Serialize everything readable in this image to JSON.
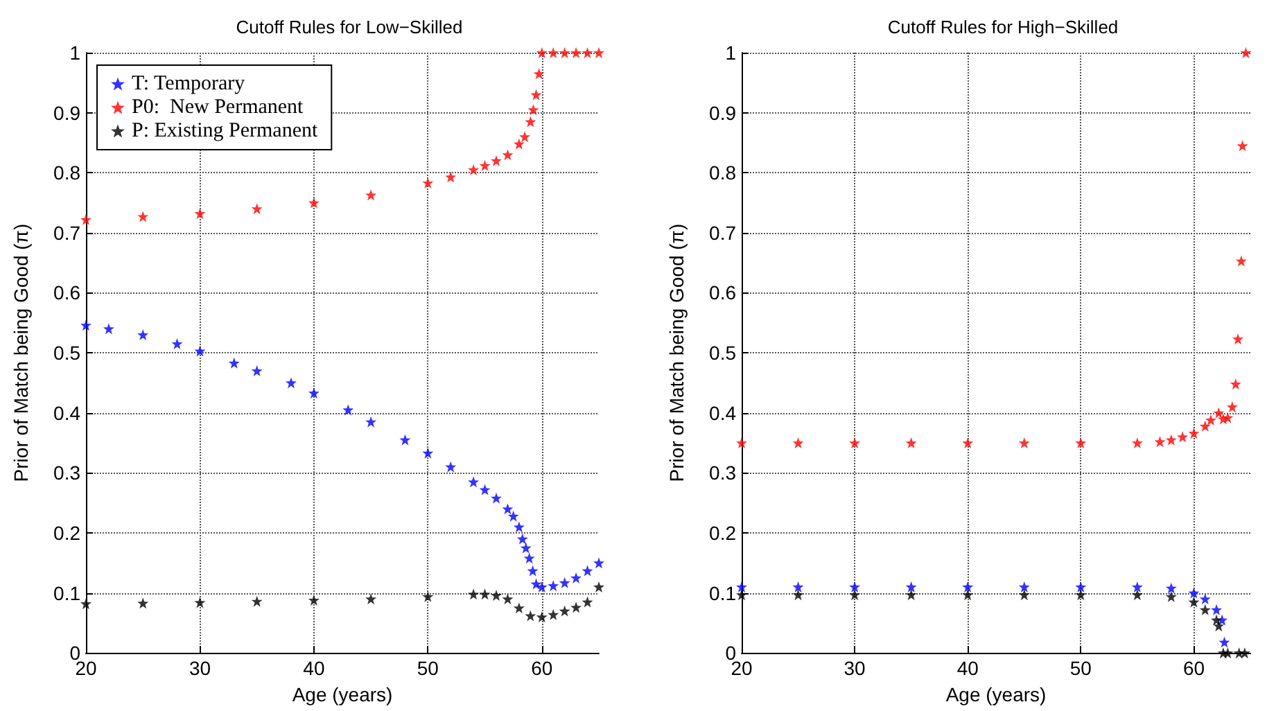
{
  "chart_data": [
    {
      "type": "scatter",
      "title": "Cutoff Rules for Low−Skilled",
      "xlabel": "Age (years)",
      "ylabel": "Prior of Match being Good (π)",
      "xlim": [
        20,
        65
      ],
      "ylim": [
        0,
        1
      ],
      "xticks": [
        20,
        30,
        40,
        50,
        60
      ],
      "yticks": [
        0,
        0.1,
        0.2,
        0.3,
        0.4,
        0.5,
        0.6,
        0.7,
        0.8,
        0.9,
        1
      ],
      "grid": true,
      "legend": "top left",
      "marker": "star",
      "series": [
        {
          "name": "T: Temporary",
          "color": "#0000ff",
          "x": [
            20,
            22,
            25,
            28,
            30,
            33,
            35,
            38,
            40,
            43,
            45,
            48,
            50,
            52,
            54,
            55,
            56,
            57,
            57.5,
            58,
            58.3,
            58.6,
            58.9,
            59.2,
            59.5,
            60,
            61,
            62,
            63,
            64,
            65
          ],
          "values": [
            0.546,
            0.54,
            0.53,
            0.515,
            0.503,
            0.483,
            0.47,
            0.45,
            0.433,
            0.405,
            0.385,
            0.355,
            0.333,
            0.31,
            0.285,
            0.272,
            0.258,
            0.24,
            0.228,
            0.21,
            0.19,
            0.175,
            0.158,
            0.137,
            0.115,
            0.11,
            0.112,
            0.117,
            0.125,
            0.137,
            0.15
          ]
        },
        {
          "name": "P0:  New Permanent",
          "color": "#ff0000",
          "x": [
            20,
            25,
            30,
            35,
            40,
            45,
            50,
            52,
            54,
            55,
            56,
            57,
            58,
            58.5,
            59,
            59.25,
            59.5,
            59.75,
            60,
            61,
            62,
            63,
            64,
            65
          ],
          "values": [
            0.722,
            0.727,
            0.732,
            0.74,
            0.75,
            0.763,
            0.783,
            0.793,
            0.805,
            0.812,
            0.82,
            0.83,
            0.848,
            0.86,
            0.885,
            0.905,
            0.93,
            0.965,
            1,
            1,
            1,
            1,
            1,
            1
          ]
        },
        {
          "name": "P: Existing Permanent",
          "color": "#000000",
          "x": [
            20,
            25,
            30,
            35,
            40,
            45,
            50,
            54,
            55,
            56,
            57,
            58,
            59,
            60,
            61,
            62,
            63,
            64,
            65
          ],
          "values": [
            0.082,
            0.083,
            0.084,
            0.086,
            0.088,
            0.09,
            0.094,
            0.098,
            0.098,
            0.096,
            0.09,
            0.075,
            0.062,
            0.06,
            0.064,
            0.07,
            0.076,
            0.085,
            0.11
          ]
        }
      ]
    },
    {
      "type": "scatter",
      "title": "Cutoff Rules for High−Skilled",
      "xlabel": "Age (years)",
      "ylabel": "Prior of Match being Good (π)",
      "xlim": [
        20,
        65
      ],
      "ylim": [
        0,
        1
      ],
      "xticks": [
        20,
        30,
        40,
        50,
        60
      ],
      "yticks": [
        0,
        0.1,
        0.2,
        0.3,
        0.4,
        0.5,
        0.6,
        0.7,
        0.8,
        0.9,
        1
      ],
      "grid": true,
      "marker": "star",
      "series": [
        {
          "color": "#ff0000",
          "x": [
            20,
            25,
            30,
            35,
            40,
            45,
            50,
            55,
            57,
            58,
            59,
            60,
            61,
            61.5,
            62.2,
            62.6,
            63.0,
            63.4,
            63.7,
            63.9,
            64.2,
            64.3,
            64.6
          ],
          "values": [
            0.35,
            0.35,
            0.35,
            0.35,
            0.35,
            0.35,
            0.35,
            0.35,
            0.352,
            0.355,
            0.36,
            0.366,
            0.378,
            0.388,
            0.4,
            0.39,
            0.392,
            0.41,
            0.448,
            0.523,
            0.653,
            0.845,
            1
          ]
        },
        {
          "color": "#0000ff",
          "x": [
            20,
            25,
            30,
            35,
            40,
            45,
            50,
            55,
            58,
            60,
            61,
            62,
            62.5,
            62.7
          ],
          "values": [
            0.11,
            0.11,
            0.11,
            0.11,
            0.11,
            0.11,
            0.11,
            0.11,
            0.108,
            0.1,
            0.09,
            0.072,
            0.055,
            0.018
          ]
        },
        {
          "color": "#000000",
          "x": [
            20,
            25,
            30,
            35,
            40,
            45,
            50,
            55,
            58,
            60,
            61,
            62,
            62.2,
            62.6,
            63,
            64,
            64.5
          ],
          "values": [
            0.097,
            0.097,
            0.097,
            0.097,
            0.097,
            0.097,
            0.097,
            0.097,
            0.094,
            0.085,
            0.072,
            0.055,
            0.045,
            0,
            0,
            0,
            0
          ]
        }
      ]
    }
  ]
}
